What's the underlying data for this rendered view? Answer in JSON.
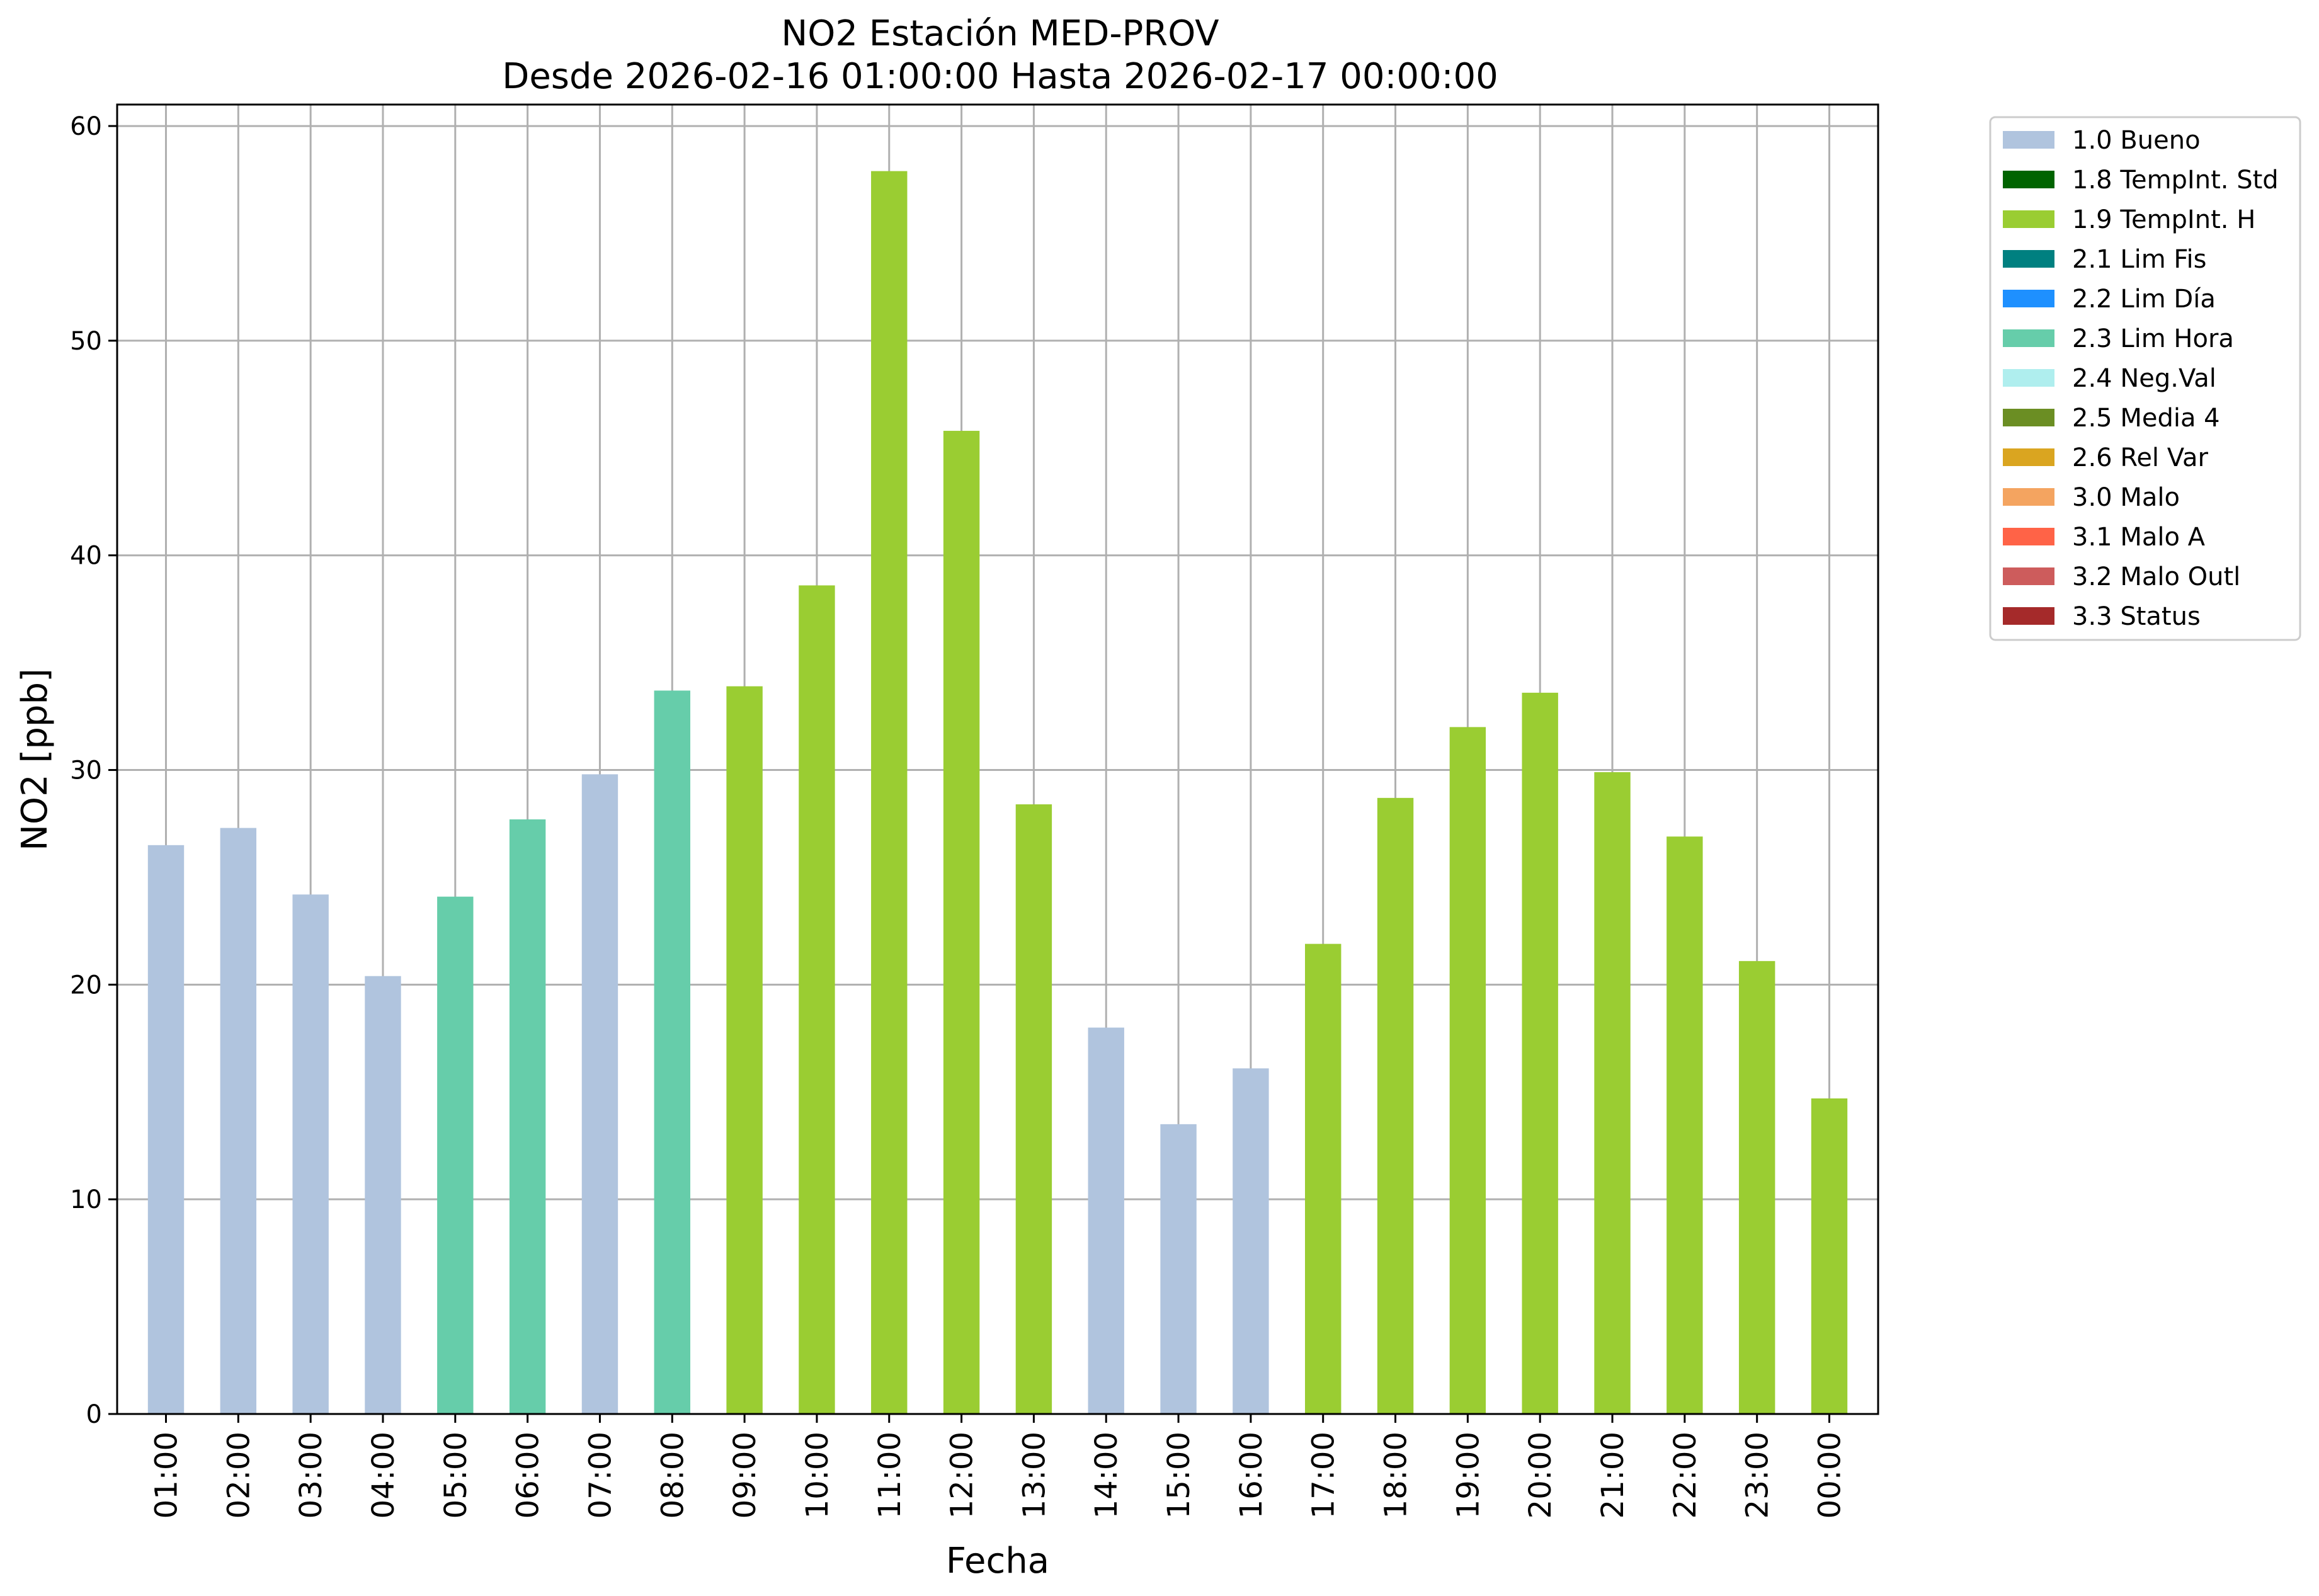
{
  "chart_data": {
    "type": "bar",
    "title": "NO2 Estación MED-PROV",
    "subtitle": "Desde 2026-02-16 01:00:00 Hasta 2026-02-17 00:00:00",
    "xlabel": "Fecha",
    "ylabel": "NO2 [ppb]",
    "ylim": [
      0,
      61
    ],
    "yticks": [
      0,
      10,
      20,
      30,
      40,
      50,
      60
    ],
    "grid": true,
    "legend_position": "outside-top-right",
    "categories": [
      "01:00",
      "02:00",
      "03:00",
      "04:00",
      "05:00",
      "06:00",
      "07:00",
      "08:00",
      "09:00",
      "10:00",
      "11:00",
      "12:00",
      "13:00",
      "14:00",
      "15:00",
      "16:00",
      "17:00",
      "18:00",
      "19:00",
      "20:00",
      "21:00",
      "22:00",
      "23:00",
      "00:00"
    ],
    "values": [
      26.5,
      27.3,
      24.2,
      20.4,
      24.1,
      27.7,
      29.8,
      33.7,
      33.9,
      38.6,
      57.9,
      45.8,
      28.4,
      18.0,
      13.5,
      16.1,
      21.9,
      28.7,
      32.0,
      33.6,
      29.9,
      26.9,
      21.1,
      14.7
    ],
    "flags": [
      "1.0 Bueno",
      "1.0 Bueno",
      "1.0 Bueno",
      "1.0 Bueno",
      "2.3 Lim Hora",
      "2.3 Lim Hora",
      "1.0 Bueno",
      "2.3 Lim Hora",
      "1.9 TempInt. H",
      "1.9 TempInt. H",
      "1.9 TempInt. H",
      "1.9 TempInt. H",
      "1.9 TempInt. H",
      "1.0 Bueno",
      "1.0 Bueno",
      "1.0 Bueno",
      "1.9 TempInt. H",
      "1.9 TempInt. H",
      "1.9 TempInt. H",
      "1.9 TempInt. H",
      "1.9 TempInt. H",
      "1.9 TempInt. H",
      "1.9 TempInt. H",
      "1.9 TempInt. H"
    ],
    "legend": [
      {
        "label": "1.0 Bueno",
        "color": "#b0c4de"
      },
      {
        "label": "1.8 TempInt. Std",
        "color": "#006400"
      },
      {
        "label": "1.9 TempInt. H",
        "color": "#9acd32"
      },
      {
        "label": "2.1 Lim Fis",
        "color": "#008080"
      },
      {
        "label": "2.2 Lim Día",
        "color": "#1e90ff"
      },
      {
        "label": "2.3 Lim Hora",
        "color": "#66cdaa"
      },
      {
        "label": "2.4 Neg.Val",
        "color": "#afeeee"
      },
      {
        "label": "2.5 Media 4",
        "color": "#6b8e23"
      },
      {
        "label": "2.6 Rel Var",
        "color": "#daa520"
      },
      {
        "label": "3.0 Malo",
        "color": "#f4a460"
      },
      {
        "label": "3.1 Malo A",
        "color": "#ff6347"
      },
      {
        "label": "3.2 Malo Outl",
        "color": "#cd5c5c"
      },
      {
        "label": "3.3 Status",
        "color": "#a52a2a"
      }
    ]
  }
}
